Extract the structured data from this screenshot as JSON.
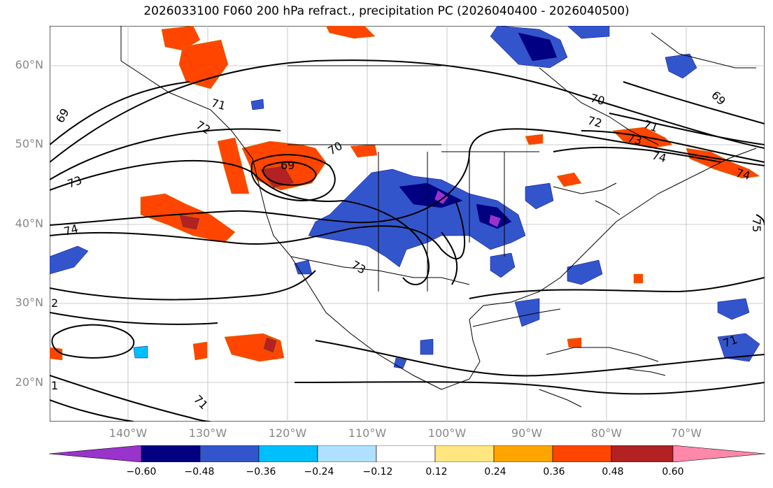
{
  "title": "2026033100 F060 200 hPa refract., precipitation PC (2026040400 - 2026040500)",
  "latitude_labels": [
    "60°N",
    "50°N",
    "40°N",
    "30°N",
    "20°N"
  ],
  "longitude_labels": [
    "140°W",
    "130°W",
    "120°W",
    "110°W",
    "100°W",
    "90°W",
    "80°W",
    "70°W"
  ],
  "contour_labels": [
    "69",
    "70",
    "71",
    "72",
    "73",
    "74",
    "69",
    "73",
    "74",
    "70",
    "71",
    "72",
    "69",
    "71",
    "73",
    "74",
    "75",
    "2",
    "71",
    "1"
  ],
  "colorbar": {
    "ticks": [
      "−0.60",
      "−0.48",
      "−0.36",
      "−0.24",
      "−0.12",
      "0.12",
      "0.24",
      "0.36",
      "0.48",
      "0.60"
    ],
    "colors": [
      "#9a33cc",
      "#000080",
      "#3355cc",
      "#00bfff",
      "#b0e0ff",
      "#ffffff",
      "#ffe680",
      "#ffa500",
      "#ff4500",
      "#b22222",
      "#ff88aa"
    ]
  }
}
